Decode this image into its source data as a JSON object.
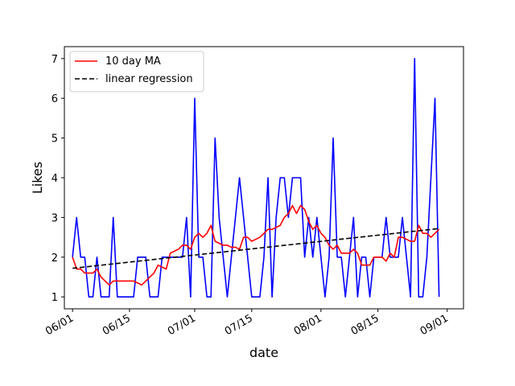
{
  "chart_data": {
    "type": "line",
    "xlabel": "date",
    "ylabel": "Likes",
    "x_tick_labels": [
      "06/01",
      "06/15",
      "07/01",
      "07/15",
      "08/01",
      "08/15",
      "09/01"
    ],
    "y_ticks": [
      1,
      2,
      3,
      4,
      5,
      6,
      7
    ],
    "xlim": [
      "2023-05-30",
      "2023-09-05"
    ],
    "ylim": [
      0.7,
      7.3
    ],
    "x_start": "2023-06-01",
    "grid": false,
    "legend_position": "top-left",
    "series": [
      {
        "role": "daily",
        "color": "#0000ff",
        "values": [
          2,
          3,
          2,
          2,
          1,
          1,
          2,
          1,
          1,
          1,
          3,
          1,
          1,
          1,
          1,
          1,
          2,
          2,
          2,
          1,
          1,
          1,
          2,
          2,
          2,
          2,
          2,
          2,
          3,
          1,
          6,
          2,
          2,
          1,
          1,
          5,
          3,
          2,
          1,
          2,
          3,
          4,
          3,
          2,
          1,
          1,
          1,
          2,
          4,
          1,
          3,
          4,
          4,
          3,
          4,
          4,
          4,
          2,
          3,
          2,
          3,
          2,
          1,
          2,
          5,
          2,
          2,
          1,
          2,
          3,
          1,
          2,
          2,
          1,
          2,
          2,
          2,
          3,
          2,
          2,
          2,
          3,
          2,
          1,
          7,
          1,
          1,
          2,
          4,
          6,
          1
        ]
      },
      {
        "name": "10 day MA",
        "color": "#ff0000",
        "values": [
          2.0,
          1.7,
          1.7,
          1.6,
          1.6,
          1.6,
          1.7,
          1.5,
          1.4,
          1.3,
          1.4,
          1.4,
          1.4,
          1.4,
          1.4,
          1.4,
          1.35,
          1.3,
          1.4,
          1.5,
          1.6,
          1.8,
          1.75,
          1.7,
          2.1,
          2.15,
          2.2,
          2.3,
          2.3,
          2.2,
          2.5,
          2.6,
          2.5,
          2.6,
          2.8,
          2.4,
          2.35,
          2.3,
          2.3,
          2.25,
          2.25,
          2.2,
          2.5,
          2.5,
          2.4,
          2.45,
          2.5,
          2.6,
          2.7,
          2.7,
          2.75,
          2.8,
          3.0,
          3.1,
          3.3,
          3.1,
          3.3,
          3.2,
          2.9,
          2.7,
          2.8,
          2.6,
          2.5,
          2.3,
          2.2,
          2.3,
          2.1,
          2.1,
          2.1,
          2.2,
          2.1,
          1.8,
          1.8,
          1.8,
          2.0,
          2.0,
          2.0,
          1.9,
          2.1,
          2.0,
          2.5,
          2.5,
          2.45,
          2.4,
          2.4,
          2.8,
          2.6,
          2.6,
          2.5,
          2.6,
          2.7
        ]
      },
      {
        "name": "linear regression",
        "color": "#000000",
        "dash": "dashed",
        "start": 1.72,
        "end": 2.72
      }
    ]
  }
}
